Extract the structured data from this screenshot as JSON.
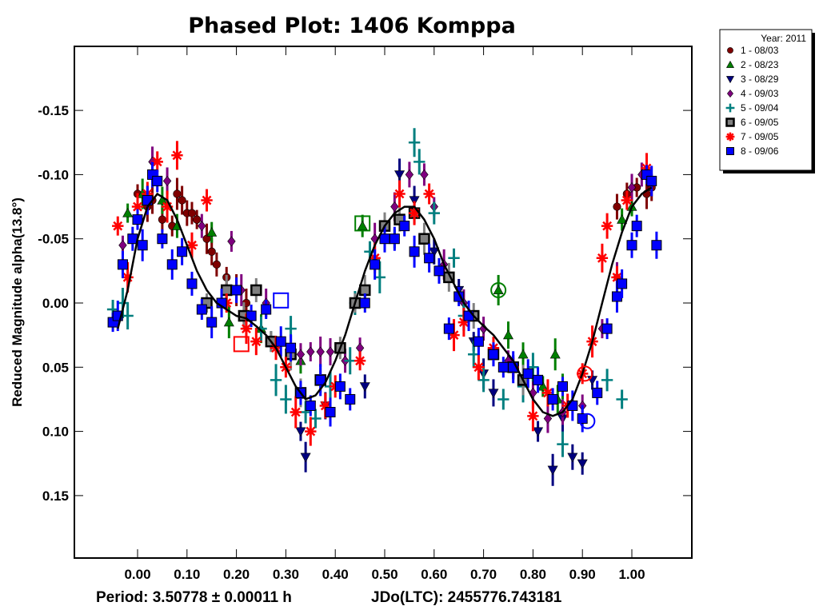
{
  "chart_data": {
    "type": "scatter",
    "title": "Phased Plot: 1406 Komppa",
    "xlabel": "",
    "ylabel": "Reduced Magnitude alpha(13.8°)",
    "footer": {
      "period": "Period: 3.50778 ± 0.00011 h",
      "epoch": "JDo(LTC): 2455776.743181"
    },
    "xlim": [
      -0.125,
      1.125
    ],
    "ylim": [
      0.2,
      -0.2
    ],
    "y_inverted": true,
    "xticks": [
      "0.00",
      "0.10",
      "0.20",
      "0.30",
      "0.40",
      "0.50",
      "0.60",
      "0.70",
      "0.80",
      "0.90",
      "1.00"
    ],
    "xtick_values": [
      0,
      0.1,
      0.2,
      0.3,
      0.4,
      0.5,
      0.6,
      0.7,
      0.8,
      0.9,
      1.0
    ],
    "yticks": [
      "-0.15",
      "-0.10",
      "-0.05",
      "0.00",
      "0.05",
      "0.10",
      "0.15"
    ],
    "ytick_values": [
      -0.15,
      -0.1,
      -0.05,
      0.0,
      0.05,
      0.1,
      0.15
    ],
    "grid": false,
    "legend": {
      "placement": "top-right-outside",
      "title": "Year: 2011",
      "entries": [
        {
          "label": "1 - 08/03",
          "marker": "circle",
          "color": "#7f0000"
        },
        {
          "label": "2 - 08/23",
          "marker": "triangle-up",
          "color": "#007f00"
        },
        {
          "label": "3 - 08/29",
          "marker": "triangle-down",
          "color": "#00007f"
        },
        {
          "label": "4 - 09/03",
          "marker": "diamond",
          "color": "#7f007f"
        },
        {
          "label": "5 - 09/04",
          "marker": "plus",
          "color": "#007f7f"
        },
        {
          "label": "6 - 09/05",
          "marker": "square-gray",
          "color": "#808080"
        },
        {
          "label": "7 - 09/05",
          "marker": "asterisk",
          "color": "#ff0000"
        },
        {
          "label": "8 - 09/06",
          "marker": "square",
          "color": "#0000ff"
        }
      ]
    },
    "fit_curve": {
      "color": "#000000",
      "x": [
        -0.04,
        -0.02,
        0.0,
        0.02,
        0.04,
        0.06,
        0.08,
        0.1,
        0.12,
        0.14,
        0.16,
        0.18,
        0.2,
        0.22,
        0.24,
        0.26,
        0.28,
        0.3,
        0.32,
        0.34,
        0.36,
        0.38,
        0.4,
        0.42,
        0.44,
        0.46,
        0.48,
        0.5,
        0.52,
        0.54,
        0.56,
        0.58,
        0.6,
        0.62,
        0.64,
        0.66,
        0.68,
        0.7,
        0.72,
        0.74,
        0.76,
        0.78,
        0.8,
        0.82,
        0.84,
        0.86,
        0.88,
        0.9,
        0.92,
        0.94,
        0.96,
        0.98,
        1.0,
        1.02,
        1.04
      ],
      "y": [
        0.02,
        -0.01,
        -0.05,
        -0.075,
        -0.085,
        -0.08,
        -0.065,
        -0.045,
        -0.025,
        -0.01,
        0.0,
        0.005,
        0.01,
        0.012,
        0.018,
        0.025,
        0.035,
        0.05,
        0.065,
        0.075,
        0.072,
        0.062,
        0.045,
        0.025,
        0.0,
        -0.025,
        -0.045,
        -0.06,
        -0.07,
        -0.075,
        -0.075,
        -0.065,
        -0.05,
        -0.03,
        -0.015,
        0.0,
        0.01,
        0.018,
        0.025,
        0.035,
        0.045,
        0.06,
        0.075,
        0.085,
        0.088,
        0.085,
        0.075,
        0.055,
        0.03,
        0.0,
        -0.03,
        -0.055,
        -0.075,
        -0.085,
        -0.09
      ]
    },
    "series": [
      {
        "name": "1 - 08/03",
        "marker": "circle",
        "color": "#7f0000",
        "x": [
          0.0,
          0.02,
          0.03,
          0.05,
          0.07,
          0.08,
          0.09,
          0.1,
          0.11,
          0.12,
          0.14,
          0.15,
          0.16,
          0.18,
          0.2,
          0.22,
          0.97,
          0.99,
          1.01,
          1.03,
          1.04
        ],
        "y": [
          -0.085,
          -0.075,
          -0.08,
          -0.065,
          -0.06,
          -0.085,
          -0.08,
          -0.07,
          -0.07,
          -0.065,
          -0.05,
          -0.04,
          -0.03,
          -0.02,
          -0.01,
          0.0,
          -0.075,
          -0.085,
          -0.09,
          -0.085,
          -0.09
        ]
      },
      {
        "name": "2 - 08/23",
        "marker": "triangle-up",
        "color": "#007f00",
        "x": [
          -0.02,
          0.01,
          0.05,
          0.08,
          0.15,
          0.185,
          0.25,
          0.33,
          0.455,
          0.52,
          0.73,
          0.75,
          0.78,
          0.82,
          0.845,
          0.85,
          0.86,
          0.98,
          1.0
        ],
        "y": [
          -0.07,
          -0.085,
          -0.08,
          -0.06,
          -0.055,
          0.015,
          0.02,
          0.045,
          -0.06,
          -0.05,
          -0.01,
          0.025,
          0.04,
          0.065,
          0.04,
          0.075,
          0.065,
          -0.065,
          -0.075
        ]
      },
      {
        "name": "3 - 08/29",
        "marker": "triangle-down",
        "color": "#00007f",
        "x": [
          0.33,
          0.34,
          0.38,
          0.46,
          0.5,
          0.53,
          0.56,
          0.6,
          0.65,
          0.68,
          0.7,
          0.72,
          0.76,
          0.81,
          0.84,
          0.86,
          0.88,
          0.9,
          0.92
        ],
        "y": [
          0.1,
          0.12,
          0.08,
          0.065,
          -0.05,
          -0.1,
          -0.08,
          -0.04,
          -0.01,
          0.03,
          0.055,
          0.07,
          0.05,
          0.1,
          0.13,
          0.09,
          0.12,
          0.125,
          0.06
        ]
      },
      {
        "name": "4 - 09/03",
        "marker": "diamond",
        "color": "#7f007f",
        "x": [
          -0.03,
          0.03,
          0.06,
          0.13,
          0.19,
          0.21,
          0.26,
          0.31,
          0.33,
          0.35,
          0.37,
          0.39,
          0.42,
          0.45,
          0.48,
          0.52,
          0.55,
          0.58,
          0.6,
          0.62,
          0.66,
          0.7,
          0.75,
          0.8,
          0.83,
          0.86,
          0.9,
          0.94,
          0.97,
          1.0,
          1.02
        ],
        "y": [
          -0.045,
          -0.11,
          -0.095,
          -0.06,
          -0.048,
          -0.01,
          0.0,
          0.035,
          0.04,
          0.038,
          0.038,
          0.038,
          0.045,
          0.035,
          -0.05,
          -0.075,
          -0.1,
          -0.1,
          -0.075,
          -0.03,
          0.0,
          0.02,
          0.045,
          0.07,
          0.09,
          0.085,
          0.08,
          0.02,
          -0.02,
          -0.09,
          -0.1
        ]
      },
      {
        "name": "5 - 09/04",
        "marker": "plus",
        "color": "#007f7f",
        "x": [
          -0.05,
          -0.03,
          -0.02,
          0.25,
          0.27,
          0.28,
          0.3,
          0.31,
          0.34,
          0.36,
          0.39,
          0.43,
          0.44,
          0.47,
          0.49,
          0.56,
          0.57,
          0.6,
          0.64,
          0.66,
          0.68,
          0.7,
          0.74,
          0.78,
          0.8,
          0.86,
          0.95,
          0.98
        ],
        "y": [
          0.005,
          0.0,
          0.01,
          0.02,
          0.03,
          0.06,
          0.075,
          0.02,
          0.085,
          0.09,
          0.065,
          0.045,
          0.0,
          -0.04,
          -0.02,
          -0.125,
          -0.11,
          -0.07,
          -0.035,
          0.01,
          0.04,
          0.06,
          0.075,
          0.065,
          0.05,
          0.11,
          0.06,
          0.075
        ]
      },
      {
        "name": "6 - 09/05",
        "marker": "square-gray",
        "color": "#808080",
        "x": [
          0.14,
          0.18,
          0.215,
          0.24,
          0.27,
          0.31,
          0.33,
          0.37,
          0.41,
          0.44,
          0.46,
          0.5,
          0.53,
          0.56,
          0.58,
          0.63,
          0.68,
          0.72,
          0.76,
          0.78
        ],
        "y": [
          0.0,
          -0.01,
          0.01,
          -0.01,
          0.03,
          0.04,
          0.07,
          0.06,
          0.035,
          0.0,
          -0.01,
          -0.06,
          -0.065,
          -0.07,
          -0.05,
          -0.02,
          0.01,
          0.04,
          0.05,
          0.06
        ]
      },
      {
        "name": "7 - 09/05",
        "marker": "asterisk",
        "color": "#ff0000",
        "x": [
          -0.04,
          -0.02,
          0.0,
          0.02,
          0.04,
          0.06,
          0.08,
          0.11,
          0.14,
          0.18,
          0.22,
          0.24,
          0.28,
          0.3,
          0.32,
          0.35,
          0.38,
          0.4,
          0.45,
          0.48,
          0.53,
          0.56,
          0.59,
          0.64,
          0.66,
          0.69,
          0.72,
          0.76,
          0.8,
          0.83,
          0.87,
          0.9,
          0.92,
          0.94,
          0.95,
          0.97,
          0.99,
          1.03
        ],
        "y": [
          -0.06,
          -0.02,
          -0.075,
          -0.085,
          -0.11,
          -0.075,
          -0.115,
          -0.045,
          -0.08,
          0.0,
          0.02,
          0.03,
          0.035,
          0.05,
          0.085,
          0.1,
          0.08,
          0.065,
          0.045,
          -0.035,
          -0.085,
          -0.07,
          -0.085,
          0.025,
          0.015,
          0.05,
          0.035,
          0.05,
          0.088,
          0.07,
          0.08,
          0.055,
          0.03,
          -0.035,
          -0.06,
          -0.02,
          -0.08,
          -0.105
        ]
      },
      {
        "name": "8 - 09/06",
        "marker": "square",
        "color": "#0000ff",
        "x": [
          -0.05,
          -0.04,
          -0.03,
          -0.01,
          0.0,
          0.01,
          0.02,
          0.03,
          0.04,
          0.05,
          0.07,
          0.09,
          0.11,
          0.13,
          0.15,
          0.17,
          0.2,
          0.23,
          0.26,
          0.29,
          0.31,
          0.33,
          0.35,
          0.37,
          0.39,
          0.41,
          0.43,
          0.46,
          0.48,
          0.5,
          0.52,
          0.54,
          0.56,
          0.59,
          0.61,
          0.63,
          0.65,
          0.67,
          0.69,
          0.72,
          0.74,
          0.76,
          0.79,
          0.81,
          0.84,
          0.86,
          0.88,
          0.9,
          0.93,
          0.95,
          0.97,
          0.98,
          1.0,
          1.01,
          1.03,
          1.04,
          1.05
        ],
        "y": [
          0.015,
          0.01,
          -0.03,
          -0.05,
          -0.065,
          -0.045,
          -0.08,
          -0.1,
          -0.095,
          -0.05,
          -0.03,
          -0.04,
          -0.015,
          0.005,
          0.015,
          0.0,
          -0.01,
          0.01,
          0.005,
          0.03,
          0.035,
          0.07,
          0.08,
          0.06,
          0.085,
          0.065,
          0.075,
          0.0,
          -0.03,
          -0.05,
          -0.05,
          -0.06,
          -0.04,
          -0.035,
          -0.025,
          0.02,
          -0.005,
          0.01,
          0.03,
          0.04,
          0.05,
          0.05,
          0.055,
          0.06,
          0.075,
          0.065,
          0.08,
          0.09,
          0.07,
          0.02,
          -0.005,
          -0.015,
          -0.045,
          -0.06,
          -0.1,
          -0.095,
          -0.045
        ]
      }
    ],
    "highlighted_points": [
      {
        "series": "2 - 08/23",
        "shape": "square",
        "x": 0.455,
        "y": -0.062,
        "color": "#007f00"
      },
      {
        "series": "2 - 08/23",
        "shape": "circle",
        "x": 0.73,
        "y": -0.01,
        "color": "#007f00"
      },
      {
        "series": "7 - 09/05",
        "shape": "square",
        "x": 0.21,
        "y": 0.032,
        "color": "#ff0000"
      },
      {
        "series": "8 - 09/06",
        "shape": "square",
        "x": 0.29,
        "y": -0.002,
        "color": "#0000ff"
      },
      {
        "series": "7 - 09/05",
        "shape": "circle",
        "x": 0.905,
        "y": 0.055,
        "color": "#ff0000"
      },
      {
        "series": "8 - 09/06",
        "shape": "circle",
        "x": 0.91,
        "y": 0.092,
        "color": "#0000ff"
      }
    ]
  }
}
